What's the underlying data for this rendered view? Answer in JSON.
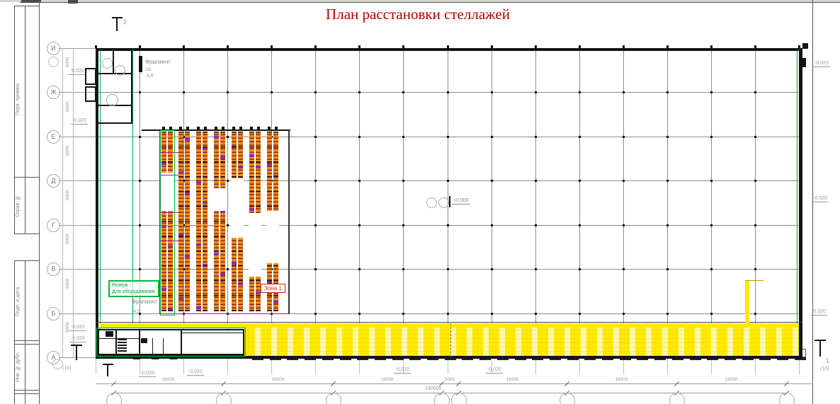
{
  "title": "План расстановки стеллажей",
  "frame": {
    "fields": [
      "Перв. примен.",
      "Справ. №",
      "Подп. и дата",
      "Инв. № дубл."
    ]
  },
  "axes": {
    "rows": [
      "И",
      "Ж",
      "Е",
      "Д",
      "Г",
      "В",
      "Б",
      "А"
    ],
    "row_dim": "6000"
  },
  "dims": {
    "bottom_bays": [
      "18000",
      "18000",
      "18000",
      "1000",
      "18000",
      "18000",
      "18000"
    ],
    "overall": "240000",
    "left_note": "(10)",
    "right_note": "(10)"
  },
  "elevations": {
    "minus": "-0,020",
    "zero": "+0,000"
  },
  "labels": {
    "fragment_top": {
      "line1": "Фрагмент",
      "line2": "2а",
      "line3": "4,6"
    },
    "fragment_mid": {
      "line1": "Фрагмент",
      "line2": "4,5"
    },
    "reserve": {
      "line1": "Резерв -",
      "line2": "Для оборудования"
    },
    "zone": "Зона 1",
    "area_note": "(71,6)",
    "section_right": "1",
    "section_top": "2"
  },
  "colors": {
    "title_red": "#b30000",
    "rack_orange": "#ee8c1e",
    "rack_outline": "#8e2d06",
    "rack_purple": "#8c2daa",
    "zone_yellow": "#ffe900",
    "zone_yellow_pale": "#fff8b0",
    "reserve_green": "#00bb3a",
    "zone_border_red": "#cc2a00",
    "magenta": "#cc0077"
  }
}
